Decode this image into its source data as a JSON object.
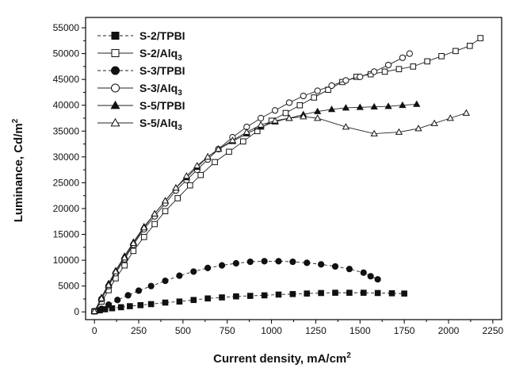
{
  "chart_data": {
    "type": "line",
    "xlabel": "Current density, mA/cm",
    "xlabel_sup": "2",
    "ylabel": "Luminance, Cd/m",
    "ylabel_sup": "2",
    "xlim": [
      -50,
      2300
    ],
    "ylim": [
      -1500,
      57000
    ],
    "xticks": [
      0,
      250,
      500,
      750,
      1000,
      1250,
      1500,
      1750,
      2000,
      2250
    ],
    "yticks": [
      0,
      5000,
      10000,
      15000,
      20000,
      25000,
      30000,
      35000,
      40000,
      45000,
      50000,
      55000
    ],
    "grid": false,
    "legend_position": "top-left",
    "series": [
      {
        "name": "S-2/TPBI",
        "name_main": "S-2/TPBI",
        "name_sub": "",
        "marker": "square",
        "filled": true,
        "line": "dashed",
        "x": [
          0,
          30,
          60,
          100,
          150,
          200,
          260,
          320,
          400,
          480,
          560,
          640,
          720,
          800,
          880,
          960,
          1040,
          1120,
          1200,
          1280,
          1360,
          1440,
          1520,
          1600,
          1680,
          1750
        ],
        "y": [
          100,
          300,
          500,
          700,
          900,
          1100,
          1300,
          1500,
          1800,
          2000,
          2300,
          2600,
          2800,
          3000,
          3100,
          3200,
          3350,
          3450,
          3550,
          3650,
          3700,
          3700,
          3700,
          3650,
          3600,
          3550
        ]
      },
      {
        "name": "S-2/Alq3",
        "name_main": "S-2/Alq",
        "name_sub": "3",
        "marker": "square",
        "filled": false,
        "line": "solid",
        "x": [
          0,
          40,
          80,
          120,
          170,
          220,
          280,
          340,
          400,
          470,
          540,
          600,
          680,
          760,
          840,
          920,
          1000,
          1080,
          1160,
          1240,
          1320,
          1400,
          1480,
          1560,
          1640,
          1720,
          1800,
          1880,
          1960,
          2040,
          2120,
          2180
        ],
        "y": [
          100,
          2000,
          4200,
          6500,
          9000,
          11800,
          14500,
          17000,
          19500,
          22000,
          24500,
          26500,
          29000,
          31000,
          33000,
          35000,
          37000,
          38500,
          40000,
          41500,
          43000,
          44500,
          45500,
          46000,
          46500,
          47000,
          47500,
          48500,
          49500,
          50500,
          51500,
          53000
        ]
      },
      {
        "name": "S-3/TPBI",
        "name_main": "S-3/TPBI",
        "name_sub": "",
        "marker": "circle",
        "filled": true,
        "line": "dashed",
        "x": [
          0,
          40,
          80,
          130,
          190,
          250,
          320,
          400,
          480,
          560,
          640,
          720,
          800,
          880,
          960,
          1040,
          1120,
          1200,
          1280,
          1360,
          1440,
          1520,
          1560,
          1600
        ],
        "y": [
          100,
          600,
          1400,
          2300,
          3200,
          4100,
          5000,
          6000,
          7000,
          7800,
          8500,
          9000,
          9400,
          9700,
          9800,
          9800,
          9700,
          9500,
          9200,
          8800,
          8300,
          7600,
          6900,
          6300
        ]
      },
      {
        "name": "S-3/Alq3",
        "name_main": "S-3/Alq",
        "name_sub": "3",
        "marker": "circle",
        "filled": false,
        "line": "solid",
        "x": [
          0,
          40,
          80,
          120,
          170,
          220,
          280,
          340,
          400,
          460,
          520,
          580,
          640,
          700,
          780,
          860,
          940,
          1020,
          1100,
          1180,
          1260,
          1340,
          1420,
          1500,
          1580,
          1660,
          1740,
          1780
        ],
        "y": [
          100,
          2500,
          5000,
          7500,
          10200,
          13000,
          16000,
          18500,
          21000,
          23500,
          25500,
          27500,
          29500,
          31500,
          33800,
          35800,
          37500,
          39000,
          40500,
          41800,
          42800,
          43800,
          44800,
          45500,
          46500,
          47800,
          49200,
          50000
        ]
      },
      {
        "name": "S-5/TPBI",
        "name_main": "S-5/TPBI",
        "name_sub": "",
        "marker": "triangle",
        "filled": true,
        "line": "solid",
        "x": [
          0,
          40,
          80,
          120,
          170,
          220,
          280,
          340,
          400,
          460,
          520,
          580,
          640,
          700,
          780,
          860,
          940,
          1020,
          1100,
          1180,
          1260,
          1340,
          1420,
          1500,
          1580,
          1660,
          1740,
          1820
        ],
        "y": [
          100,
          2800,
          5500,
          8000,
          10800,
          13500,
          16500,
          19000,
          21500,
          24000,
          26000,
          28000,
          30000,
          31500,
          33000,
          34500,
          35800,
          36800,
          37500,
          38200,
          38800,
          39200,
          39500,
          39600,
          39700,
          39800,
          40000,
          40200
        ]
      },
      {
        "name": "S-5/Alq3",
        "name_main": "S-5/Alq",
        "name_sub": "3",
        "marker": "triangle",
        "filled": false,
        "line": "solid",
        "x": [
          0,
          40,
          80,
          120,
          170,
          220,
          280,
          340,
          400,
          460,
          520,
          580,
          640,
          700,
          780,
          860,
          940,
          1020,
          1100,
          1180,
          1260,
          1420,
          1580,
          1720,
          1830,
          1920,
          2010,
          2100
        ],
        "y": [
          100,
          2600,
          5200,
          7800,
          10500,
          13300,
          16300,
          19000,
          21500,
          24000,
          26300,
          28300,
          30000,
          31500,
          33200,
          34800,
          36200,
          37000,
          37500,
          37800,
          37500,
          35800,
          34500,
          34800,
          35500,
          36500,
          37500,
          38500
        ]
      }
    ]
  }
}
